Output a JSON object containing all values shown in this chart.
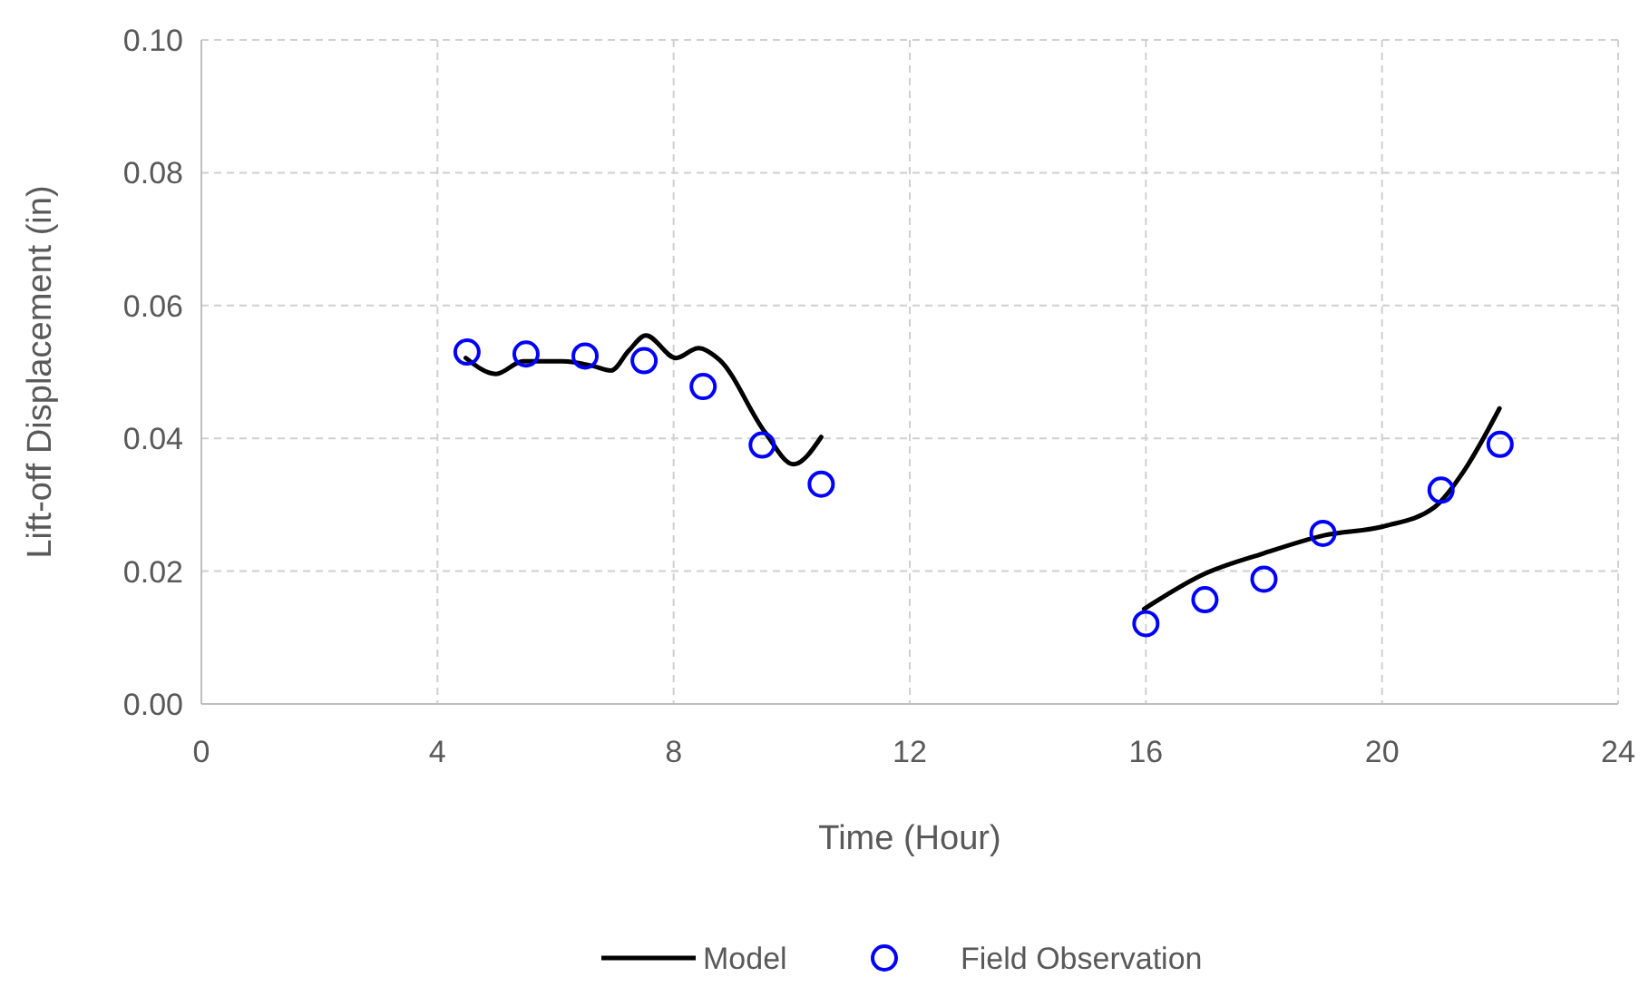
{
  "chart_data": {
    "type": "line",
    "xlabel": "Time (Hour)",
    "ylabel": "Lift-off Displacement (in)",
    "xlim": [
      0,
      24
    ],
    "xticks": [
      0,
      4,
      8,
      12,
      16,
      20,
      24
    ],
    "ylim": [
      0,
      0.1
    ],
    "yticks": [
      {
        "value": 0,
        "label": "0.00"
      },
      {
        "value": 0.02,
        "label": "0.02"
      },
      {
        "value": 0.04,
        "label": "0.04"
      },
      {
        "value": 0.06,
        "label": "0.06"
      },
      {
        "value": 0.08,
        "label": "0.08"
      },
      {
        "value": 0.1,
        "label": "0.10"
      }
    ],
    "grid": true,
    "legend": "bottom",
    "series": [
      {
        "name": "Model",
        "type": "line",
        "color": "#000000",
        "marker": "none",
        "x": [
          4.48,
          4.99,
          5.45,
          6.12,
          6.63,
          6.94,
          7.24,
          7.53,
          8.04,
          8.42,
          8.78,
          9.55,
          10.03,
          10.5,
          13,
          15.97,
          16.97,
          18.0,
          19.02,
          20.05,
          20.87,
          21.38,
          21.99
        ],
        "values": [
          0.0521,
          0.0497,
          0.0516,
          0.0516,
          0.0509,
          0.0502,
          0.0532,
          0.0555,
          0.0521,
          0.0536,
          0.0518,
          0.0409,
          0.0361,
          0.0402,
          null,
          0.0143,
          0.0195,
          0.0227,
          0.0254,
          0.0268,
          0.0295,
          0.035,
          0.0445
        ]
      },
      {
        "name": "Field Observation",
        "type": "scatter",
        "color": "#0000ff",
        "marker": "circle",
        "x": [
          4.5,
          5.5,
          6.5,
          7.5,
          8.5,
          9.5,
          10.5,
          16,
          17,
          18,
          19,
          21,
          22
        ],
        "values": [
          0.053,
          0.0527,
          0.0524,
          0.0517,
          0.0478,
          0.039,
          0.0331,
          0.0121,
          0.0157,
          0.0188,
          0.0257,
          0.0322,
          0.0391
        ]
      }
    ]
  }
}
